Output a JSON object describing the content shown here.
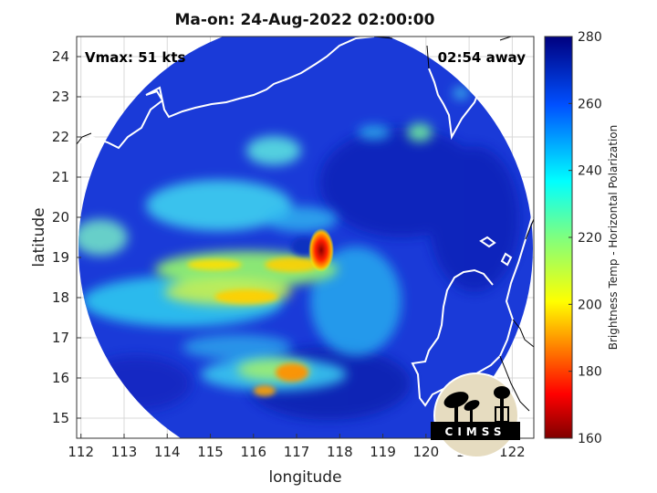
{
  "title": "Ma-on: 24-Aug-2022 02:00:00",
  "overlay": {
    "vmax": "Vmax: 51 kts",
    "time_away": "02:54 away"
  },
  "logo": {
    "text": "CIMSS"
  },
  "chart_data": {
    "type": "heatmap",
    "xlabel": "longitude",
    "ylabel": "latitude",
    "xlim": [
      111.9,
      122.5
    ],
    "ylim": [
      14.5,
      24.5
    ],
    "x_ticks": [
      "112",
      "113",
      "114",
      "115",
      "116",
      "117",
      "118",
      "119",
      "120",
      "121",
      "122"
    ],
    "y_ticks": [
      "15",
      "16",
      "17",
      "18",
      "19",
      "20",
      "21",
      "22",
      "23",
      "24"
    ],
    "grid": true,
    "colorbar": {
      "label": "Brightness Temp - Horizontal Polarization",
      "range": [
        160,
        280
      ],
      "ticks": [
        "160",
        "180",
        "200",
        "220",
        "240",
        "260",
        "280"
      ],
      "colormap": "jet"
    },
    "swath_center": {
      "lon": 117.5,
      "lat": 19.3
    },
    "features": [
      {
        "name": "cold core",
        "lon": 117.6,
        "lat": 19.2,
        "value": 170
      },
      {
        "name": "southern band",
        "lon": 116.8,
        "lat": 15.9,
        "value": 185
      },
      {
        "name": "western band",
        "lon": 115.7,
        "lat": 18.2,
        "value": 195
      }
    ],
    "colors": {
      "background_field": "#1832c8",
      "coast": "#ffffff"
    }
  }
}
